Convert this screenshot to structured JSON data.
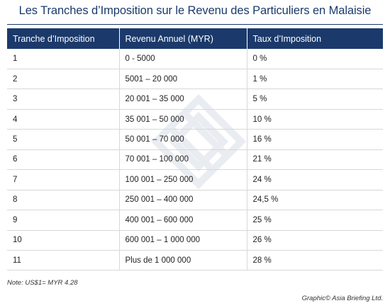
{
  "title": "Les Tranches d’Imposition sur le Revenu des Particuliers en Malaisie",
  "table": {
    "headers": [
      "Tranche d’Imposition",
      "Revenu Annuel (MYR)",
      "Taux d’Imposition"
    ],
    "rows": [
      [
        "1",
        "0 - 5000",
        "0 %"
      ],
      [
        "2",
        "5001 – 20 000",
        "1 %"
      ],
      [
        "3",
        "20 001 – 35 000",
        "5 %"
      ],
      [
        "4",
        "35 001 – 50 000",
        "10 %"
      ],
      [
        "5",
        "50 001 – 70 000",
        "16 %"
      ],
      [
        "6",
        "70 001 – 100 000",
        "21 %"
      ],
      [
        "7",
        "100 001 – 250 000",
        "24 %"
      ],
      [
        "8",
        "250 001 – 400 000",
        "24,5 %"
      ],
      [
        "9",
        "400 001 – 600 000",
        "25 %"
      ],
      [
        "10",
        "600 001 – 1 000 000",
        "26 %"
      ],
      [
        "11",
        "Plus de 1 000 000",
        "28 %"
      ]
    ]
  },
  "note": "Note: US$1= MYR 4.28",
  "credit": "Graphic© Asia Briefing Ltd.",
  "colors": {
    "header_bg": "#1b3a6b",
    "title_text": "#1b3a6b",
    "row_border": "#d8d8d8"
  },
  "icons": {
    "watermark": "asia-briefing-logo-watermark"
  }
}
